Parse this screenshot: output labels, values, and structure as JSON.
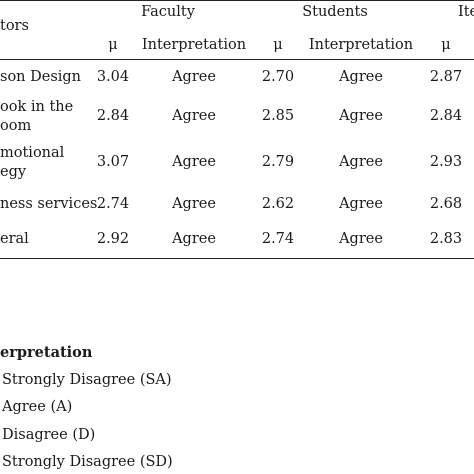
{
  "table": {
    "header_group": {
      "indicators": "tors",
      "faculty": "Faculty",
      "students": "Students",
      "third": "Ite"
    },
    "subheaders": {
      "mu1": "μ",
      "interp1": "Interpretation",
      "mu2": "μ",
      "interp2": "Interpretation",
      "mu3": "μ"
    },
    "rows": [
      {
        "label_lines": [
          "son Design"
        ],
        "faculty_mean": "3.04",
        "faculty_interp": "Agree",
        "students_mean": "2.70",
        "students_interp": "Agree",
        "third_mean": "2.87"
      },
      {
        "label_lines": [
          "ook in the",
          "oom"
        ],
        "faculty_mean": "2.84",
        "faculty_interp": "Agree",
        "students_mean": "2.85",
        "students_interp": "Agree",
        "third_mean": "2.84"
      },
      {
        "label_lines": [
          "motional",
          "egy"
        ],
        "faculty_mean": "3.07",
        "faculty_interp": "Agree",
        "students_mean": "2.79",
        "students_interp": "Agree",
        "third_mean": "2.93"
      },
      {
        "label_lines": [
          "ness services"
        ],
        "faculty_mean": "2.74",
        "faculty_interp": "Agree",
        "students_mean": "2.62",
        "students_interp": "Agree",
        "third_mean": "2.68"
      },
      {
        "label_lines": [
          "eral"
        ],
        "faculty_mean": "2.92",
        "faculty_interp": "Agree",
        "students_mean": "2.74",
        "students_interp": "Agree",
        "third_mean": "2.83"
      }
    ]
  },
  "legend": {
    "title": "erpretation",
    "items": [
      "Strongly Disagree (SA)",
      "Agree (A)",
      "Disagree (D)",
      "Strongly Disagree (SD)"
    ]
  }
}
